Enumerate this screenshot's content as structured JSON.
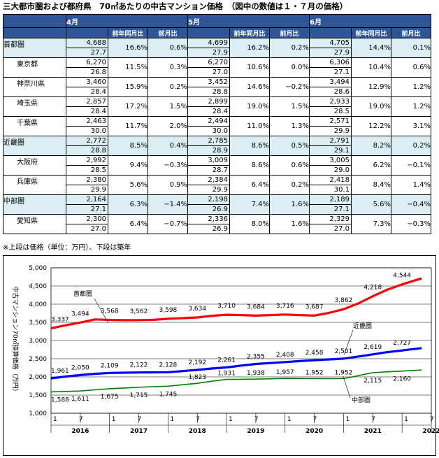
{
  "title": "三大都市圏および都府県　70㎡あたりの中古マンション価格　（図中の数値は１・７月の価格）",
  "table": {
    "months": [
      "4月",
      "5月",
      "6月"
    ],
    "col_headers": [
      "前年同月比",
      "前月比"
    ],
    "rows": [
      {
        "name": "首都圏",
        "major": true,
        "cells": [
          {
            "price": "4,688",
            "age": "27.7",
            "yoy": "16.6%",
            "mom": "0.6%"
          },
          {
            "price": "4,699",
            "age": "27.9",
            "yoy": "16.2%",
            "mom": "0.2%"
          },
          {
            "price": "4,705",
            "age": "27.9",
            "yoy": "14.4%",
            "mom": "0.1%"
          }
        ]
      },
      {
        "name": "東京都",
        "major": false,
        "cells": [
          {
            "price": "6,270",
            "age": "26.8",
            "yoy": "11.5%",
            "mom": "0.3%"
          },
          {
            "price": "6,270",
            "age": "27.0",
            "yoy": "10.6%",
            "mom": "0.0%"
          },
          {
            "price": "6,306",
            "age": "27.1",
            "yoy": "10.4%",
            "mom": "0.6%"
          }
        ]
      },
      {
        "name": "神奈川県",
        "major": false,
        "cells": [
          {
            "price": "3,460",
            "age": "28.4",
            "yoy": "15.9%",
            "mom": "0.2%"
          },
          {
            "price": "3,452",
            "age": "28.8",
            "yoy": "14.6%",
            "mom": "−0.2%"
          },
          {
            "price": "3,494",
            "age": "28.6",
            "yoy": "12.9%",
            "mom": "1.2%"
          }
        ]
      },
      {
        "name": "埼玉県",
        "major": false,
        "cells": [
          {
            "price": "2,857",
            "age": "28.4",
            "yoy": "17.2%",
            "mom": "1.5%"
          },
          {
            "price": "2,899",
            "age": "28.4",
            "yoy": "19.0%",
            "mom": "1.5%"
          },
          {
            "price": "2,933",
            "age": "28.5",
            "yoy": "19.0%",
            "mom": "1.2%"
          }
        ]
      },
      {
        "name": "千葉県",
        "major": false,
        "cells": [
          {
            "price": "2,463",
            "age": "30.0",
            "yoy": "11.7%",
            "mom": "2.0%"
          },
          {
            "price": "2,494",
            "age": "30.0",
            "yoy": "11.0%",
            "mom": "1.3%"
          },
          {
            "price": "2,571",
            "age": "29.9",
            "yoy": "12.2%",
            "mom": "3.1%"
          }
        ]
      },
      {
        "name": "近畿圏",
        "major": true,
        "cells": [
          {
            "price": "2,772",
            "age": "28.8",
            "yoy": "8.5%",
            "mom": "0.4%"
          },
          {
            "price": "2,785",
            "age": "28.9",
            "yoy": "8.6%",
            "mom": "0.5%"
          },
          {
            "price": "2,791",
            "age": "29.1",
            "yoy": "8.2%",
            "mom": "0.2%"
          }
        ]
      },
      {
        "name": "大阪府",
        "major": false,
        "cells": [
          {
            "price": "2,992",
            "age": "28.5",
            "yoy": "9.4%",
            "mom": "−0.3%"
          },
          {
            "price": "3,009",
            "age": "28.7",
            "yoy": "8.6%",
            "mom": "0.6%"
          },
          {
            "price": "3,005",
            "age": "29.0",
            "yoy": "6.2%",
            "mom": "−0.1%"
          }
        ]
      },
      {
        "name": "兵庫県",
        "major": false,
        "cells": [
          {
            "price": "2,380",
            "age": "29.9",
            "yoy": "5.6%",
            "mom": "0.9%"
          },
          {
            "price": "2,384",
            "age": "29.9",
            "yoy": "6.4%",
            "mom": "0.2%"
          },
          {
            "price": "2,418",
            "age": "30.1",
            "yoy": "8.4%",
            "mom": "1.4%"
          }
        ]
      },
      {
        "name": "中部圏",
        "major": true,
        "cells": [
          {
            "price": "2,164",
            "age": "27.1",
            "yoy": "6.3%",
            "mom": "−1.4%"
          },
          {
            "price": "2,198",
            "age": "26.9",
            "yoy": "7.4%",
            "mom": "1.6%"
          },
          {
            "price": "2,189",
            "age": "27.1",
            "yoy": "5.6%",
            "mom": "−0.4%"
          }
        ]
      },
      {
        "name": "愛知県",
        "major": false,
        "cells": [
          {
            "price": "2,300",
            "age": "27.0",
            "yoy": "6.4%",
            "mom": "−0.7%"
          },
          {
            "price": "2,336",
            "age": "26.9",
            "yoy": "8.0%",
            "mom": "1.6%"
          },
          {
            "price": "2,329",
            "age": "27.0",
            "yoy": "7.3%",
            "mom": "−0.3%"
          }
        ]
      }
    ]
  },
  "footnote": "※上段は価格（単位：万円）、下段は築年",
  "chart_data": {
    "type": "line",
    "ylabel": "中古マンション70㎡換算価格（万円）",
    "ylim": [
      1000,
      5000
    ],
    "yticks": [
      "1,000",
      "1,500",
      "2,000",
      "2,500",
      "3,000",
      "3,500",
      "4,000",
      "4,500",
      "5,000"
    ],
    "years": [
      "2016",
      "2017",
      "2018",
      "2019",
      "2020",
      "2021",
      "2022"
    ],
    "month_ticks": [
      "1",
      "7"
    ],
    "grid": "horizontal",
    "series": [
      {
        "name": "首都圏",
        "color": "#ff0000",
        "labels": [
          "3,337",
          "3,494",
          "3,568",
          "3,562",
          "3,598",
          "3,634",
          "3,710",
          "3,684",
          "3,716",
          "3,687",
          "3,862",
          "4,218",
          "4,544"
        ],
        "points": [
          [
            0,
            3337
          ],
          [
            3,
            3420
          ],
          [
            6,
            3494
          ],
          [
            9,
            3580
          ],
          [
            12,
            3568
          ],
          [
            15,
            3560
          ],
          [
            18,
            3562
          ],
          [
            21,
            3570
          ],
          [
            24,
            3598
          ],
          [
            27,
            3615
          ],
          [
            30,
            3634
          ],
          [
            33,
            3680
          ],
          [
            36,
            3710
          ],
          [
            39,
            3700
          ],
          [
            42,
            3684
          ],
          [
            45,
            3700
          ],
          [
            48,
            3716
          ],
          [
            51,
            3700
          ],
          [
            54,
            3687
          ],
          [
            57,
            3760
          ],
          [
            60,
            3862
          ],
          [
            63,
            4020
          ],
          [
            66,
            4218
          ],
          [
            69,
            4400
          ],
          [
            72,
            4544
          ],
          [
            75,
            4670
          ],
          [
            76,
            4705
          ]
        ]
      },
      {
        "name": "近畿圏",
        "color": "#0000ff",
        "labels": [
          "1,961",
          "2,050",
          "2,109",
          "2,122",
          "2,128",
          "2,192",
          "2,261",
          "2,355",
          "2,408",
          "2,458",
          "2,501",
          "2,619",
          "2,727"
        ],
        "points": [
          [
            0,
            1961
          ],
          [
            3,
            2010
          ],
          [
            6,
            2050
          ],
          [
            9,
            2085
          ],
          [
            12,
            2109
          ],
          [
            15,
            2115
          ],
          [
            18,
            2122
          ],
          [
            21,
            2125
          ],
          [
            24,
            2128
          ],
          [
            27,
            2160
          ],
          [
            30,
            2192
          ],
          [
            33,
            2230
          ],
          [
            36,
            2261
          ],
          [
            39,
            2310
          ],
          [
            42,
            2355
          ],
          [
            45,
            2380
          ],
          [
            48,
            2408
          ],
          [
            51,
            2435
          ],
          [
            54,
            2458
          ],
          [
            57,
            2480
          ],
          [
            60,
            2501
          ],
          [
            63,
            2560
          ],
          [
            66,
            2619
          ],
          [
            69,
            2680
          ],
          [
            72,
            2727
          ],
          [
            75,
            2775
          ],
          [
            76,
            2791
          ]
        ]
      },
      {
        "name": "中部圏",
        "color": "#008000",
        "labels": [
          "1,588",
          "1,611",
          "1,675",
          "1,715",
          "1,745",
          "1,823",
          "1,931",
          "1,938",
          "1,957",
          "1,952",
          "1,952",
          "2,115",
          "2,160"
        ],
        "points": [
          [
            0,
            1588
          ],
          [
            3,
            1600
          ],
          [
            6,
            1611
          ],
          [
            9,
            1645
          ],
          [
            12,
            1675
          ],
          [
            15,
            1695
          ],
          [
            18,
            1715
          ],
          [
            21,
            1730
          ],
          [
            24,
            1745
          ],
          [
            27,
            1785
          ],
          [
            30,
            1823
          ],
          [
            33,
            1880
          ],
          [
            36,
            1931
          ],
          [
            39,
            1935
          ],
          [
            42,
            1938
          ],
          [
            45,
            1948
          ],
          [
            48,
            1957
          ],
          [
            51,
            1955
          ],
          [
            54,
            1952
          ],
          [
            57,
            1952
          ],
          [
            60,
            1952
          ],
          [
            63,
            2035
          ],
          [
            66,
            2115
          ],
          [
            69,
            2140
          ],
          [
            72,
            2160
          ],
          [
            75,
            2180
          ],
          [
            76,
            2189
          ]
        ]
      }
    ]
  }
}
